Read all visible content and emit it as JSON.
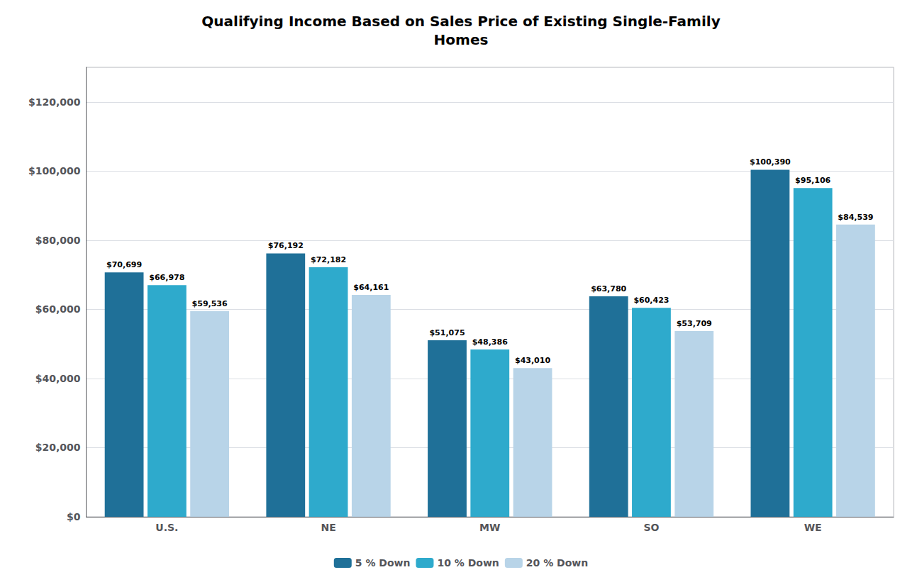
{
  "chart_data": {
    "type": "bar",
    "title": "Qualifying Income Based on Sales Price of Existing Single-Family\nHomes",
    "categories": [
      "U.S.",
      "NE",
      "MW",
      "SO",
      "WE"
    ],
    "series": [
      {
        "name": "5 % Down",
        "color": "#1f7098",
        "values": [
          70699,
          76192,
          51075,
          63780,
          100390
        ],
        "value_labels": [
          "$70,699",
          "$76,192",
          "$51,075",
          "$63,780",
          "$100,390"
        ]
      },
      {
        "name": "10 % Down",
        "color": "#2eaacc",
        "values": [
          66978,
          72182,
          48386,
          60423,
          95106
        ],
        "value_labels": [
          "$66,978",
          "$72,182",
          "$48,386",
          "$60,423",
          "$95,106"
        ]
      },
      {
        "name": "20 % Down",
        "color": "#b8d4e8",
        "values": [
          59536,
          64161,
          43010,
          53709,
          84539
        ],
        "value_labels": [
          "$59,536",
          "$64,161",
          "$43,010",
          "$53,709",
          "$84,539"
        ]
      }
    ],
    "ylim": [
      0,
      130000
    ],
    "yticks": [
      {
        "value": 0,
        "label": "$0"
      },
      {
        "value": 20000,
        "label": "$20,000"
      },
      {
        "value": 40000,
        "label": "$40,000"
      },
      {
        "value": 60000,
        "label": "$60,000"
      },
      {
        "value": 80000,
        "label": "$80,000"
      },
      {
        "value": 100000,
        "label": "$100,000"
      },
      {
        "value": 120000,
        "label": "$120,000"
      }
    ],
    "grid": true,
    "legend": "bottom",
    "data_labels": true
  }
}
